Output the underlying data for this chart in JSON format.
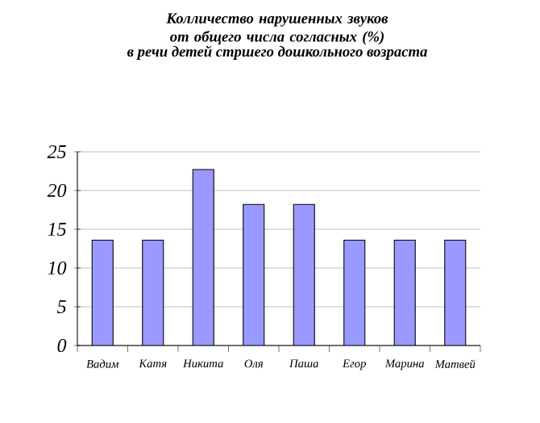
{
  "chart_data": {
    "type": "bar",
    "title": "Колличество нарушенных звуков от общего числа согласных (%)",
    "subtitle": "в речи детей стршего дошкольного возраста",
    "categories": [
      "Вадим",
      "Катя",
      "Никита",
      "Оля",
      "Паша",
      "Егор",
      "Марина",
      "Матвей"
    ],
    "values": [
      13.6,
      13.6,
      22.7,
      18.2,
      18.2,
      13.6,
      13.6,
      13.6
    ],
    "color": "#9999ff",
    "ylim": [
      0,
      25
    ],
    "yticks": [
      0,
      5,
      10,
      15,
      20,
      25
    ],
    "grid": "y"
  }
}
